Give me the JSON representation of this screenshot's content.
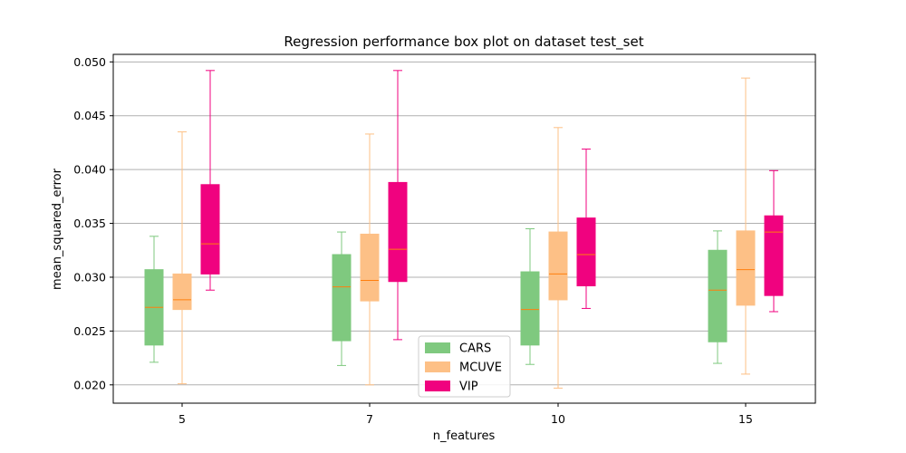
{
  "chart_data": {
    "type": "box",
    "title": "Regression performance box plot on dataset test_set",
    "xlabel": "n_features",
    "ylabel": "mean_squared_error",
    "categories": [
      "5",
      "7",
      "10",
      "15"
    ],
    "ylim": [
      0.0183,
      0.0507
    ],
    "yticks": [
      "0.020",
      "0.025",
      "0.030",
      "0.035",
      "0.040",
      "0.045",
      "0.050"
    ],
    "ytick_values": [
      0.02,
      0.025,
      0.03,
      0.035,
      0.04,
      0.045,
      0.05
    ],
    "grid": "y",
    "legend_position": "lower-center",
    "median_color": "#ff7f0e",
    "series": [
      {
        "name": "CARS",
        "color": "#7fc97f",
        "boxes": [
          {
            "min": 0.0221,
            "q1": 0.0237,
            "median": 0.0272,
            "q3": 0.0307,
            "max": 0.0338
          },
          {
            "min": 0.0218,
            "q1": 0.0241,
            "median": 0.0291,
            "q3": 0.0321,
            "max": 0.0342
          },
          {
            "min": 0.0219,
            "q1": 0.0237,
            "median": 0.027,
            "q3": 0.0305,
            "max": 0.0345
          },
          {
            "min": 0.022,
            "q1": 0.024,
            "median": 0.0288,
            "q3": 0.0325,
            "max": 0.0343
          }
        ]
      },
      {
        "name": "MCUVE",
        "color": "#fdc086",
        "boxes": [
          {
            "min": 0.0201,
            "q1": 0.027,
            "median": 0.0279,
            "q3": 0.0303,
            "max": 0.0435
          },
          {
            "min": 0.02,
            "q1": 0.0278,
            "median": 0.0297,
            "q3": 0.034,
            "max": 0.0433
          },
          {
            "min": 0.0197,
            "q1": 0.0279,
            "median": 0.0303,
            "q3": 0.0342,
            "max": 0.0439
          },
          {
            "min": 0.021,
            "q1": 0.0274,
            "median": 0.0307,
            "q3": 0.0343,
            "max": 0.0485
          }
        ]
      },
      {
        "name": "VIP",
        "color": "#f0027f",
        "boxes": [
          {
            "min": 0.0288,
            "q1": 0.0303,
            "median": 0.0331,
            "q3": 0.0386,
            "max": 0.0492
          },
          {
            "min": 0.0242,
            "q1": 0.0296,
            "median": 0.0326,
            "q3": 0.0388,
            "max": 0.0492
          },
          {
            "min": 0.0271,
            "q1": 0.0292,
            "median": 0.0321,
            "q3": 0.0355,
            "max": 0.0419
          },
          {
            "min": 0.0268,
            "q1": 0.0283,
            "median": 0.0342,
            "q3": 0.0357,
            "max": 0.0399
          }
        ]
      }
    ]
  }
}
